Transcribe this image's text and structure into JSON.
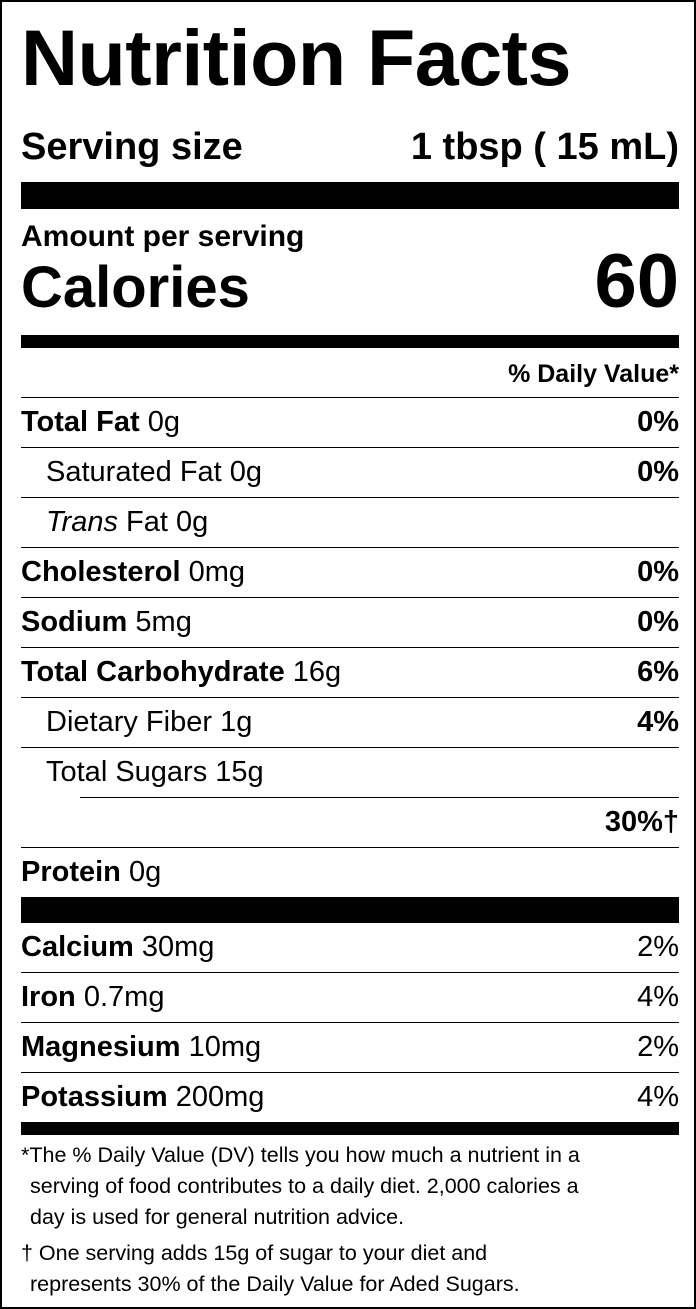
{
  "title": "Nutrition Facts",
  "serving": {
    "label": "Serving size",
    "value": "1 tbsp ( 15 mL)"
  },
  "amount_per_serving": "Amount per serving",
  "calories": {
    "label": "Calories",
    "value": "60"
  },
  "daily_value_header": "% Daily Value*",
  "nutrients": [
    {
      "name": "Total Fat",
      "amount": "0g",
      "dv": "0%"
    },
    {
      "name": "Saturated Fat",
      "amount": "0g",
      "dv": "0%"
    },
    {
      "name": "Trans",
      "name_suffix": "Fat",
      "amount": "0g",
      "dv": ""
    },
    {
      "name": "Cholesterol",
      "amount": "0mg",
      "dv": "0%"
    },
    {
      "name": "Sodium",
      "amount": "5mg",
      "dv": "0%"
    },
    {
      "name": "Total Carbohydrate",
      "amount": "16g",
      "dv": "6%"
    },
    {
      "name": "Dietary Fiber",
      "amount": "1g",
      "dv": "4%"
    },
    {
      "name": "Total Sugars",
      "amount": "15g",
      "dv": ""
    },
    {
      "name": "",
      "amount": "",
      "dv": "30%†"
    },
    {
      "name": "Protein",
      "amount": "0g",
      "dv": ""
    }
  ],
  "minerals": [
    {
      "name": "Calcium",
      "amount": "30mg",
      "dv": "2%"
    },
    {
      "name": "Iron",
      "amount": "0.7mg",
      "dv": "4%"
    },
    {
      "name": "Magnesium",
      "amount": "10mg",
      "dv": "2%"
    },
    {
      "name": "Potassium",
      "amount": "200mg",
      "dv": "4%"
    }
  ],
  "footnotes": {
    "dv_line1": "*The % Daily Value (DV) tells you how much a nutrient in a",
    "dv_line2": "serving of food contributes to a daily diet. 2,000 calories a",
    "dv_line3": "day is used for general nutrition advice.",
    "sugar_line1": "† One serving adds 15g of sugar to your diet and",
    "sugar_line2": "represents 30% of the Daily Value for Aded Sugars."
  }
}
